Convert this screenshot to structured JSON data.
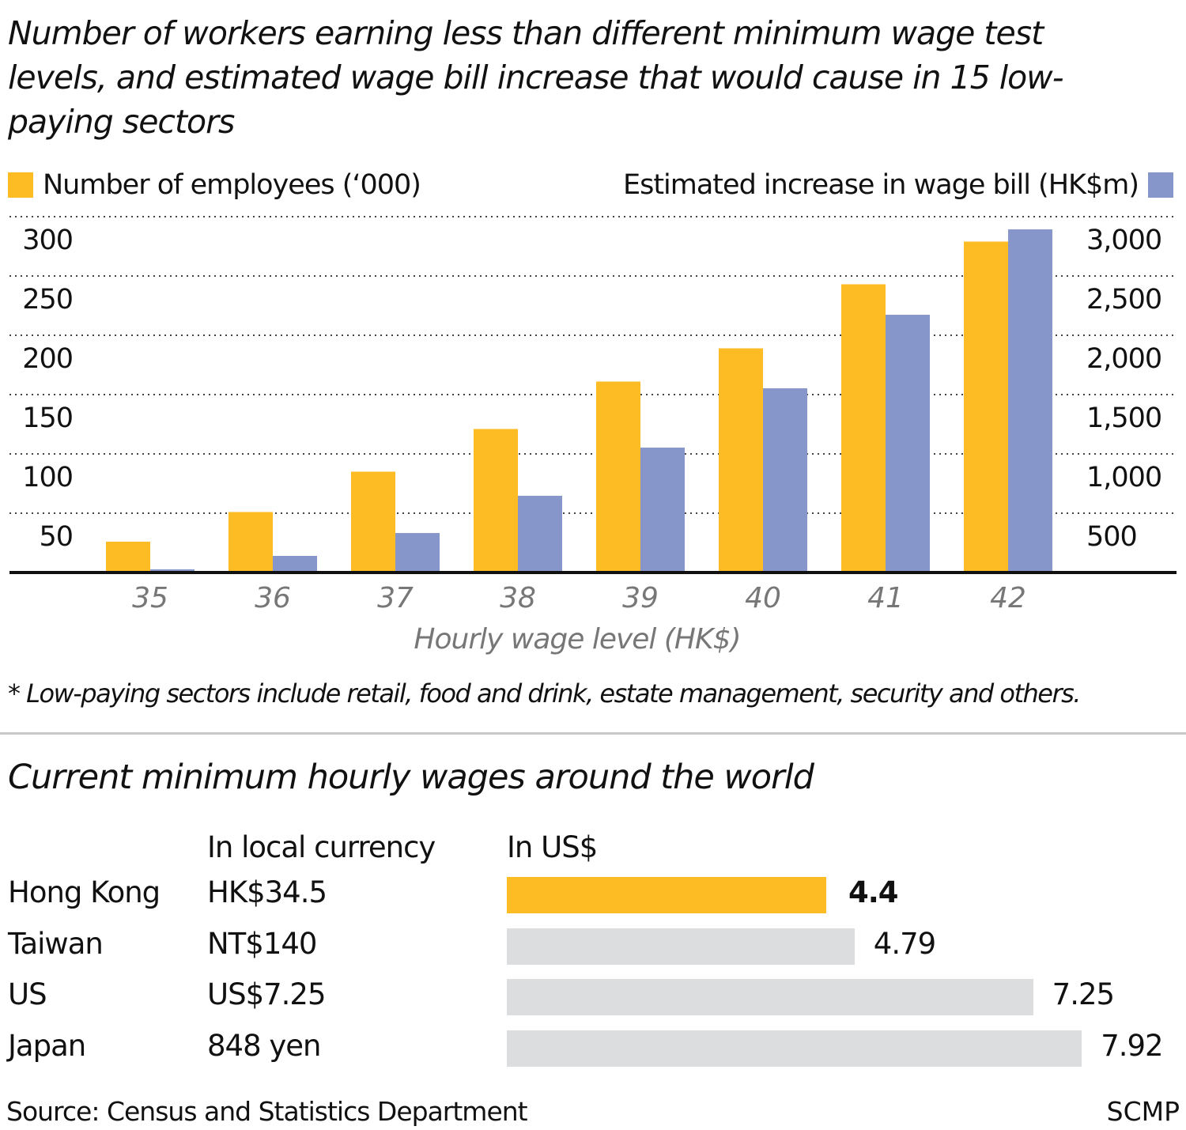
{
  "title": "Number of workers earning less than different minimum wage test levels, and estimated wage bill increase that would cause in 15 low-paying sectors",
  "chart_data": [
    {
      "type": "bar",
      "title": "Number of workers earning less than different minimum wage test levels, and estimated wage bill increase that would cause in 15 low-paying sectors",
      "categories": [
        "35",
        "36",
        "37",
        "38",
        "39",
        "40",
        "41",
        "42"
      ],
      "xlabel": "Hourly wage level (HK$)",
      "series": [
        {
          "name": "Number of employees (‘000)",
          "axis": "left",
          "color": "#FDBB24",
          "values": [
            26,
            51,
            85,
            121,
            161,
            189,
            243,
            279
          ]
        },
        {
          "name": "Estimated increase in wage bill (HK$m)",
          "axis": "right",
          "color": "#8796CA",
          "values": [
            27,
            140,
            333,
            647,
            1053,
            1553,
            2173,
            2893
          ]
        }
      ],
      "left_axis": {
        "ylim": [
          0,
          300
        ],
        "ticks": [
          "50",
          "100",
          "150",
          "200",
          "250",
          "300"
        ],
        "tick_values": [
          50,
          100,
          150,
          200,
          250,
          300
        ]
      },
      "right_axis": {
        "ylim": [
          0,
          3000
        ],
        "ticks": [
          "500",
          "1,000",
          "1,500",
          "2,000",
          "2,500",
          "3,000"
        ],
        "tick_values": [
          500,
          1000,
          1500,
          2000,
          2500,
          3000
        ]
      },
      "grid": true,
      "legend": "top"
    },
    {
      "type": "bar",
      "title": "Current minimum hourly wages around the world",
      "orientation": "horizontal",
      "columns": [
        "In local currency",
        "In US$"
      ],
      "rows": [
        {
          "country": "Hong Kong",
          "local": "HK$34.5",
          "usd": 4.4,
          "usd_label": "4.4",
          "color": "#FDBB24",
          "highlight": true
        },
        {
          "country": "Taiwan",
          "local": "NT$140",
          "usd": 4.79,
          "usd_label": "4.79",
          "color": "#DCDDDE"
        },
        {
          "country": "US",
          "local": "US$7.25",
          "usd": 7.25,
          "usd_label": "7.25",
          "color": "#DCDDDE"
        },
        {
          "country": "Japan",
          "local": "848 yen",
          "usd": 7.92,
          "usd_label": "7.92",
          "color": "#DCDDDE"
        }
      ]
    }
  ],
  "note": "* Low-paying sectors include retail, food and drink, estate management, security and others.",
  "source": "Source: Census and Statistics Department",
  "brand": "SCMP"
}
